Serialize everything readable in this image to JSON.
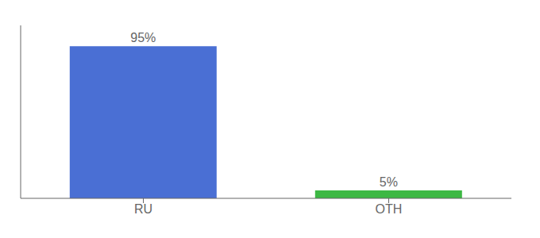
{
  "chart_data": {
    "type": "bar",
    "categories": [
      "RU",
      "OTH"
    ],
    "values": [
      95,
      5
    ],
    "value_labels": [
      "95%",
      "5%"
    ],
    "colors": [
      "#4a6fd4",
      "#3cb843"
    ],
    "ylim": [
      0,
      108
    ],
    "data_labels": true,
    "tick_labels": "x",
    "grid": false
  }
}
